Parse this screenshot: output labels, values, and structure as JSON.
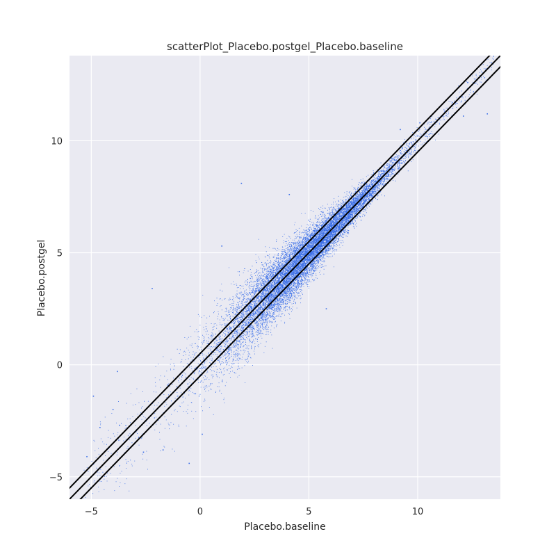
{
  "chart_data": {
    "type": "scatter",
    "title": "scatterPlot_Placebo.postgel_Placebo.baseline",
    "xlabel": "Placebo.baseline",
    "ylabel": "Placebo.postgel",
    "xlim": [
      -6,
      13.8
    ],
    "ylim": [
      -6,
      13.8
    ],
    "xticks": [
      -5,
      0,
      5,
      10
    ],
    "yticks": [
      -5,
      0,
      5,
      10
    ],
    "xtick_labels": [
      "−5",
      "0",
      "5",
      "10"
    ],
    "ytick_labels": [
      "−5",
      "0",
      "5",
      "10"
    ],
    "grid": true,
    "point_color": "#3b6fe8",
    "line_color": "#000000",
    "background_color": "#eaeaf2",
    "reference_lines": [
      {
        "slope": 1,
        "intercept": 0
      },
      {
        "slope": 1,
        "intercept": 0.5
      },
      {
        "slope": 1,
        "intercept": -0.5
      }
    ],
    "point_cloud": {
      "approx_count": 15000,
      "x_center": 4.8,
      "x_spread": 2.0,
      "residual_sd_low_x": 1.0,
      "residual_sd_high_x": 0.25,
      "x_range": [
        -5.5,
        13.5
      ]
    },
    "sample_points": [
      {
        "x": -5.2,
        "y": -4.1
      },
      {
        "x": -4.9,
        "y": -1.4
      },
      {
        "x": -4.6,
        "y": -2.8
      },
      {
        "x": -4.0,
        "y": -2.0
      },
      {
        "x": -3.7,
        "y": -2.7
      },
      {
        "x": -3.8,
        "y": -0.3
      },
      {
        "x": -2.6,
        "y": -3.9
      },
      {
        "x": -2.2,
        "y": 3.4
      },
      {
        "x": -1.7,
        "y": -3.8
      },
      {
        "x": -0.5,
        "y": -4.4
      },
      {
        "x": 0.1,
        "y": -3.1
      },
      {
        "x": 1.0,
        "y": 5.3
      },
      {
        "x": 1.9,
        "y": 8.1
      },
      {
        "x": 4.1,
        "y": 7.6
      },
      {
        "x": 5.8,
        "y": 2.5
      },
      {
        "x": 6.8,
        "y": 5.9
      },
      {
        "x": 9.2,
        "y": 10.5
      },
      {
        "x": 10.1,
        "y": 10.8
      },
      {
        "x": 11.5,
        "y": 12.0
      },
      {
        "x": 12.1,
        "y": 11.1
      },
      {
        "x": 12.3,
        "y": 12.6
      },
      {
        "x": 13.2,
        "y": 11.2
      },
      {
        "x": 13.3,
        "y": 12.8
      }
    ]
  }
}
